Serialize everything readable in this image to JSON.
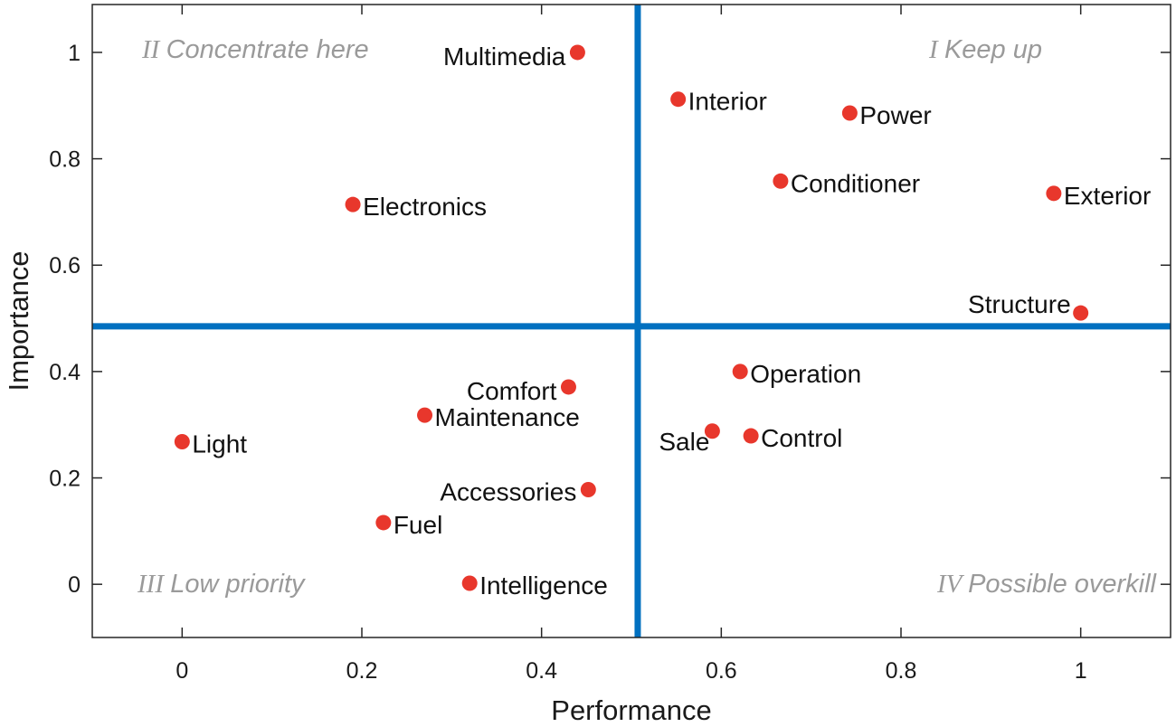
{
  "chart_data": {
    "type": "scatter",
    "xlabel": "Performance",
    "ylabel": "Importance",
    "xlim": [
      -0.1,
      1.1
    ],
    "ylim": [
      -0.1,
      1.09
    ],
    "x_ticks": [
      "0",
      "0.2",
      "0.4",
      "0.6",
      "0.8",
      "1"
    ],
    "y_ticks": [
      "0",
      "0.2",
      "0.4",
      "0.6",
      "0.8",
      "1"
    ],
    "grid": false,
    "threshold_lines": {
      "x": 0.507,
      "y": 0.485
    },
    "quadrants": [
      {
        "roman": "I",
        "text": "Keep up"
      },
      {
        "roman": "II",
        "text": "Concentrate here"
      },
      {
        "roman": "III",
        "text": "Low priority"
      },
      {
        "roman": "IV",
        "text": "Possible overkill"
      }
    ],
    "points": [
      {
        "label": "Multimedia",
        "x": 0.44,
        "y": 1.0
      },
      {
        "label": "Interior",
        "x": 0.552,
        "y": 0.912
      },
      {
        "label": "Power",
        "x": 0.743,
        "y": 0.886
      },
      {
        "label": "Conditioner",
        "x": 0.666,
        "y": 0.758
      },
      {
        "label": "Exterior",
        "x": 0.97,
        "y": 0.735
      },
      {
        "label": "Electronics",
        "x": 0.19,
        "y": 0.714
      },
      {
        "label": "Structure",
        "x": 1.0,
        "y": 0.51
      },
      {
        "label": "Operation",
        "x": 0.621,
        "y": 0.4
      },
      {
        "label": "Comfort",
        "x": 0.43,
        "y": 0.371
      },
      {
        "label": "Maintenance",
        "x": 0.27,
        "y": 0.318
      },
      {
        "label": "Sale",
        "x": 0.59,
        "y": 0.288
      },
      {
        "label": "Control",
        "x": 0.633,
        "y": 0.279
      },
      {
        "label": "Light",
        "x": 0.0,
        "y": 0.268
      },
      {
        "label": "Accessories",
        "x": 0.452,
        "y": 0.178
      },
      {
        "label": "Fuel",
        "x": 0.224,
        "y": 0.116
      },
      {
        "label": "Intelligence",
        "x": 0.32,
        "y": 0.002
      }
    ]
  },
  "colors": {
    "point": "#e8372c",
    "threshold_line": "#0070c0",
    "axis": "#262626",
    "quadrant_text": "#9a9a9a"
  }
}
